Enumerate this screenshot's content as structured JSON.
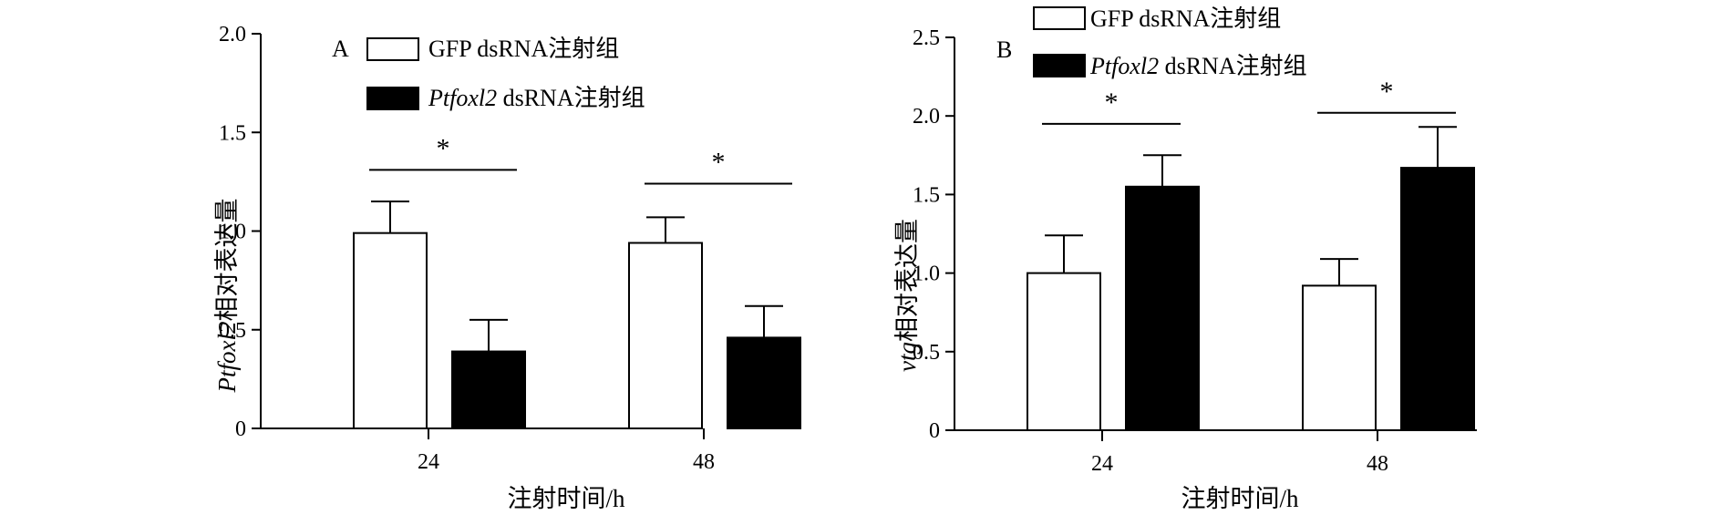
{
  "chart_data": [
    {
      "panel": "A",
      "type": "bar",
      "categories": [
        "24",
        "48"
      ],
      "xlabel": "注射时间/h",
      "ylabel": {
        "italic": "Ptfoxl2",
        "rest": "相对表达量"
      },
      "ylim": [
        0,
        2.0
      ],
      "yticks": [
        0,
        0.5,
        1.0,
        1.5,
        2.0
      ],
      "ytick_labels": [
        "0",
        "0.5",
        "1.0",
        "1.5",
        "2.0"
      ],
      "grid": false,
      "legend_position": "top-left",
      "series": [
        {
          "name": {
            "italic": "",
            "rest": "GFP dsRNA注射组"
          },
          "values": [
            0.99,
            0.94
          ],
          "errors": [
            0.16,
            0.13
          ],
          "color": "#ffffff"
        },
        {
          "name": {
            "italic": "Ptfoxl2",
            "rest": " dsRNA注射组"
          },
          "values": [
            0.39,
            0.46
          ],
          "errors": [
            0.16,
            0.16
          ],
          "color": "#000000"
        }
      ],
      "significance": [
        {
          "category": "24",
          "label": "*",
          "level": 1.31
        },
        {
          "category": "48",
          "label": "*",
          "level": 1.24
        }
      ]
    },
    {
      "panel": "B",
      "type": "bar",
      "categories": [
        "24",
        "48"
      ],
      "xlabel": "注射时间/h",
      "ylabel": {
        "italic": "vtg",
        "rest": "相对表达量"
      },
      "ylim": [
        0,
        2.5
      ],
      "yticks": [
        0,
        0.5,
        1.0,
        1.5,
        2.0,
        2.5
      ],
      "ytick_labels": [
        "0",
        "0.5",
        "1.0",
        "1.5",
        "2.0",
        "2.5"
      ],
      "grid": false,
      "legend_position": "top-left",
      "series": [
        {
          "name": {
            "italic": "",
            "rest": "GFP dsRNA注射组"
          },
          "values": [
            1.0,
            0.92
          ],
          "errors": [
            0.24,
            0.17
          ],
          "color": "#ffffff"
        },
        {
          "name": {
            "italic": "Ptfoxl2",
            "rest": " dsRNA注射组"
          },
          "values": [
            1.55,
            1.67
          ],
          "errors": [
            0.2,
            0.26
          ],
          "color": "#000000"
        }
      ],
      "significance": [
        {
          "category": "24",
          "label": "*",
          "level": 1.95
        },
        {
          "category": "48",
          "label": "*",
          "level": 2.02
        }
      ]
    }
  ]
}
